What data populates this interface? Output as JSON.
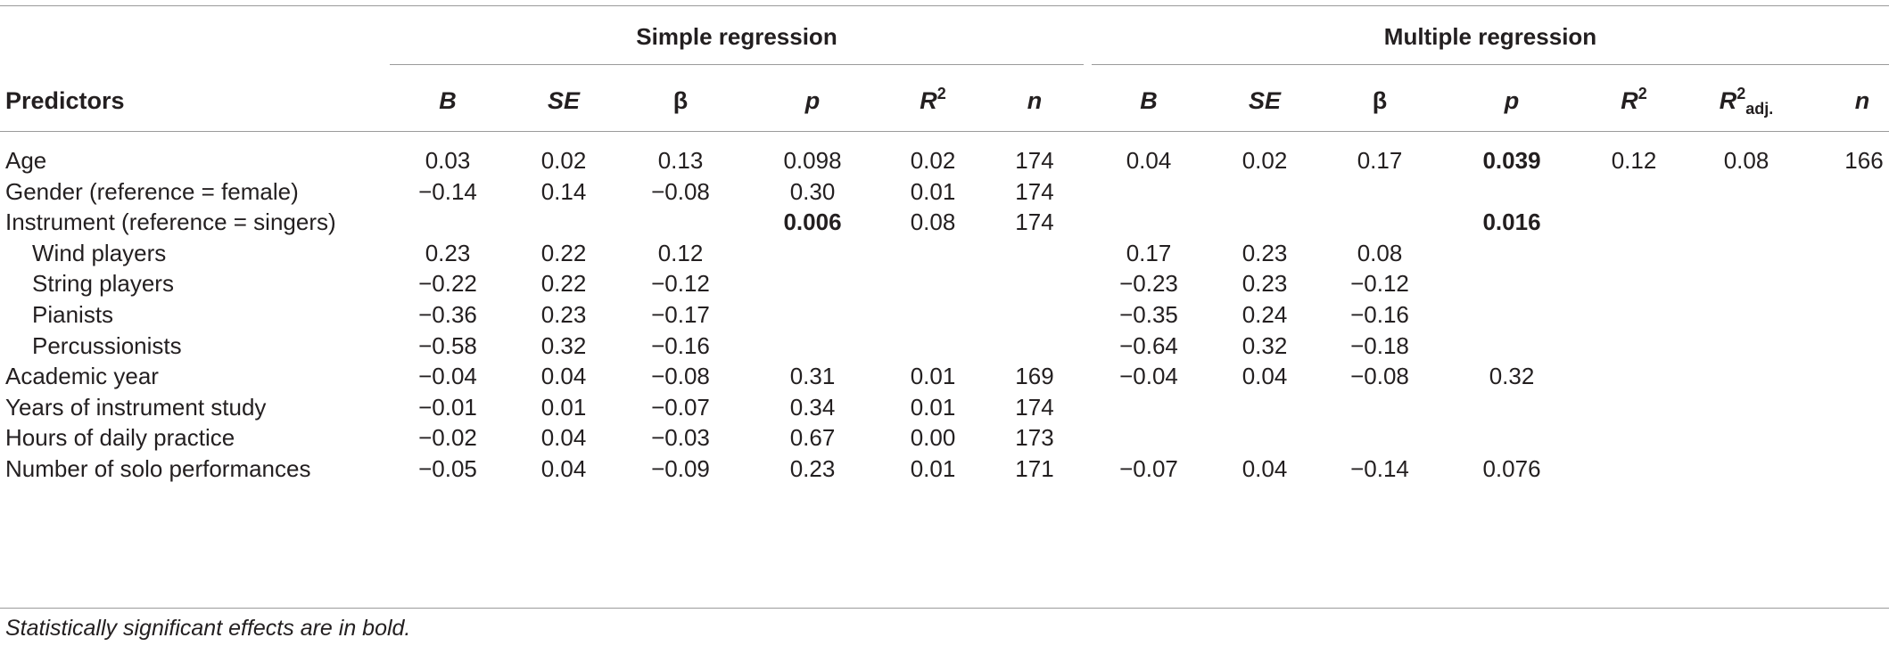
{
  "groups": {
    "simple": "Simple regression",
    "multiple": "Multiple regression"
  },
  "header": {
    "predictors": "Predictors",
    "s_B": "B",
    "s_SE": "SE",
    "s_beta": "β",
    "s_p": "p",
    "s_R": "R",
    "s_R_sup": "2",
    "s_n": "n",
    "m_B": "B",
    "m_SE": "SE",
    "m_beta": "β",
    "m_p": "p",
    "m_R": "R",
    "m_R_sup": "2",
    "m_Radj": "R",
    "m_Radj_sup": "2",
    "m_Radj_sub": "adj.",
    "m_n": "n"
  },
  "rows": [
    {
      "label": "Age",
      "indent": false,
      "s": [
        "0.03",
        "0.02",
        "0.13",
        "0.098",
        "0.02",
        "174"
      ],
      "m": [
        "0.04",
        "0.02",
        "0.17",
        "0.039",
        "0.12",
        "0.08",
        "166"
      ],
      "bold_s_p": false,
      "bold_m_p": true
    },
    {
      "label": "Gender (reference = female)",
      "indent": false,
      "s": [
        "−0.14",
        "0.14",
        "−0.08",
        "0.30",
        "0.01",
        "174"
      ],
      "m": [
        "",
        "",
        "",
        "",
        "",
        "",
        ""
      ],
      "bold_s_p": false,
      "bold_m_p": false
    },
    {
      "label": "Instrument (reference = singers)",
      "indent": false,
      "s": [
        "",
        "",
        "",
        "0.006",
        "0.08",
        "174"
      ],
      "m": [
        "",
        "",
        "",
        "0.016",
        "",
        "",
        ""
      ],
      "bold_s_p": true,
      "bold_m_p": true
    },
    {
      "label": "Wind players",
      "indent": true,
      "s": [
        "0.23",
        "0.22",
        "0.12",
        "",
        "",
        ""
      ],
      "m": [
        "0.17",
        "0.23",
        "0.08",
        "",
        "",
        "",
        ""
      ],
      "bold_s_p": false,
      "bold_m_p": false
    },
    {
      "label": "String players",
      "indent": true,
      "s": [
        "−0.22",
        "0.22",
        "−0.12",
        "",
        "",
        ""
      ],
      "m": [
        "−0.23",
        "0.23",
        "−0.12",
        "",
        "",
        "",
        ""
      ],
      "bold_s_p": false,
      "bold_m_p": false
    },
    {
      "label": "Pianists",
      "indent": true,
      "s": [
        "−0.36",
        "0.23",
        "−0.17",
        "",
        "",
        ""
      ],
      "m": [
        "−0.35",
        "0.24",
        "−0.16",
        "",
        "",
        "",
        ""
      ],
      "bold_s_p": false,
      "bold_m_p": false
    },
    {
      "label": "Percussionists",
      "indent": true,
      "s": [
        "−0.58",
        "0.32",
        "−0.16",
        "",
        "",
        ""
      ],
      "m": [
        "−0.64",
        "0.32",
        "−0.18",
        "",
        "",
        "",
        ""
      ],
      "bold_s_p": false,
      "bold_m_p": false
    },
    {
      "label": "Academic year",
      "indent": false,
      "s": [
        "−0.04",
        "0.04",
        "−0.08",
        "0.31",
        "0.01",
        "169"
      ],
      "m": [
        "−0.04",
        "0.04",
        "−0.08",
        "0.32",
        "",
        "",
        ""
      ],
      "bold_s_p": false,
      "bold_m_p": false
    },
    {
      "label": "Years of instrument study",
      "indent": false,
      "s": [
        "−0.01",
        "0.01",
        "−0.07",
        "0.34",
        "0.01",
        "174"
      ],
      "m": [
        "",
        "",
        "",
        "",
        "",
        "",
        ""
      ],
      "bold_s_p": false,
      "bold_m_p": false
    },
    {
      "label": "Hours of daily practice",
      "indent": false,
      "s": [
        "−0.02",
        "0.04",
        "−0.03",
        "0.67",
        "0.00",
        "173"
      ],
      "m": [
        "",
        "",
        "",
        "",
        "",
        "",
        ""
      ],
      "bold_s_p": false,
      "bold_m_p": false
    },
    {
      "label": "Number of solo performances",
      "indent": false,
      "s": [
        "−0.05",
        "0.04",
        "−0.09",
        "0.23",
        "0.01",
        "171"
      ],
      "m": [
        "−0.07",
        "0.04",
        "−0.14",
        "0.076",
        "",
        "",
        ""
      ],
      "bold_s_p": false,
      "bold_m_p": false
    }
  ],
  "note": "Statistically significant effects are in bold."
}
